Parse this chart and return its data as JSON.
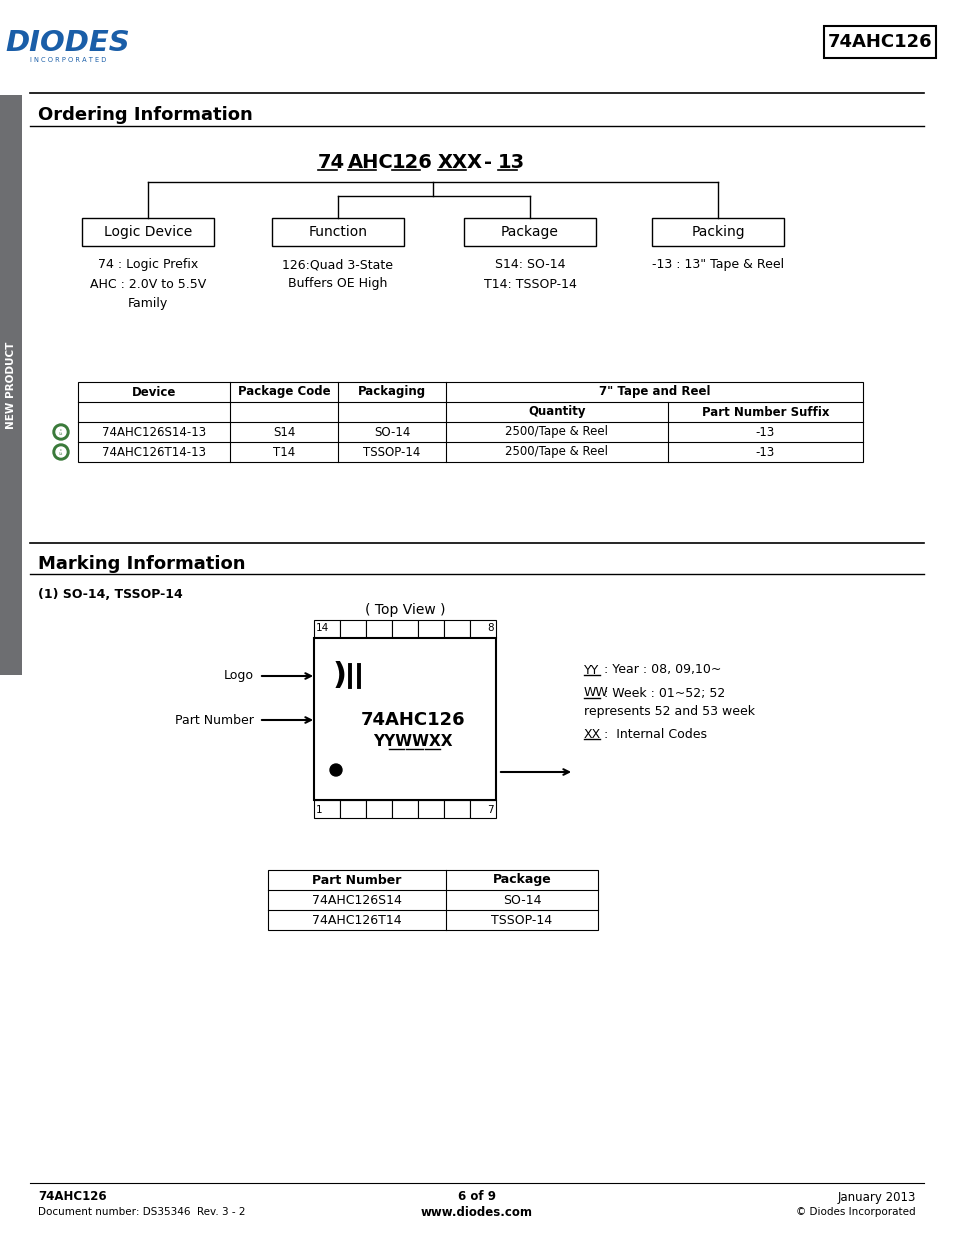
{
  "page_bg": "#ffffff",
  "sidebar_color": "#6d6e71",
  "sidebar_text": "NEW PRODUCT",
  "header_logo_color": "#1a5ea8",
  "header_part_number": "74AHC126",
  "section1_title": "Ordering Information",
  "box_descriptions": [
    "74 : Logic Prefix\nAHC : 2.0V to 5.5V\nFamily",
    "126:Quad 3-State\nBuffers OE High",
    "S14: SO-14\nT14: TSSOP-14",
    "-13 : 13\" Tape & Reel"
  ],
  "box_labels": [
    "Logic Device",
    "Function",
    "Package",
    "Packing"
  ],
  "table1_rows": [
    [
      "74AHC126S14-13",
      "S14",
      "SO-14",
      "2500/Tape & Reel",
      "-13"
    ],
    [
      "74AHC126T14-13",
      "T14",
      "TSSOP-14",
      "2500/Tape & Reel",
      "-13"
    ]
  ],
  "section2_title": "Marking Information",
  "marking_subtitle": "(1) SO-14, TSSOP-14",
  "top_view_label": "( Top View )",
  "marking_notes": [
    "YY : Year : 08, 09,10~",
    "WW : Week : 01~52; 52",
    "represents 52 and 53 week",
    "XX :  Internal Codes"
  ],
  "table2_rows": [
    [
      "74AHC126S14",
      "SO-14"
    ],
    [
      "74AHC126T14",
      "TSSOP-14"
    ]
  ],
  "footer_left1": "74AHC126",
  "footer_left2": "Document number: DS35346  Rev. 3 - 2",
  "footer_center1": "6 of 9",
  "footer_center2": "www.diodes.com",
  "footer_right1": "January 2013",
  "footer_right2": "© Diodes Incorporated"
}
